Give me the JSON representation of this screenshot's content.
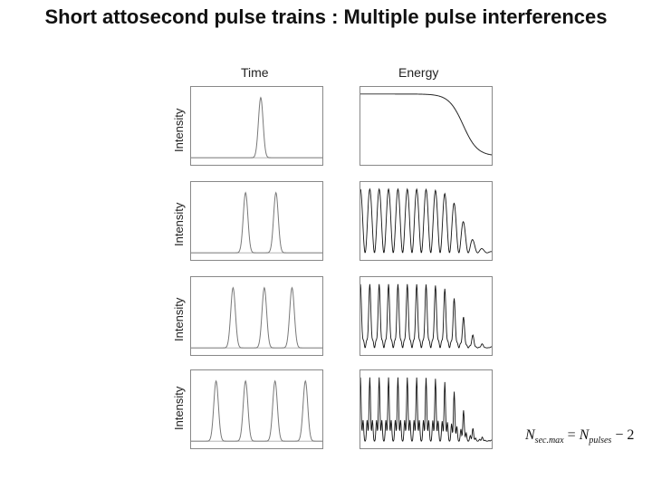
{
  "title": "Short attosecond pulse trains : Multiple pulse interferences",
  "columns": {
    "time": "Time",
    "energy": "Energy"
  },
  "y_label": "Intensity",
  "formula": {
    "lhs": "N",
    "lhs_sub": "sec.max",
    "eq": "=",
    "rhs": "N",
    "rhs_sub": "pulses",
    "tail": "− 2"
  },
  "chart_data": [
    {
      "type": "line",
      "panel": "time-1",
      "pulses": 1
    },
    {
      "type": "line",
      "panel": "energy-1",
      "pulses": 1
    },
    {
      "type": "line",
      "panel": "time-2",
      "pulses": 2
    },
    {
      "type": "line",
      "panel": "energy-2",
      "pulses": 2
    },
    {
      "type": "line",
      "panel": "time-3",
      "pulses": 3
    },
    {
      "type": "line",
      "panel": "energy-3",
      "pulses": 3
    },
    {
      "type": "line",
      "panel": "time-4",
      "pulses": 4
    },
    {
      "type": "line",
      "panel": "energy-4",
      "pulses": 4
    }
  ]
}
